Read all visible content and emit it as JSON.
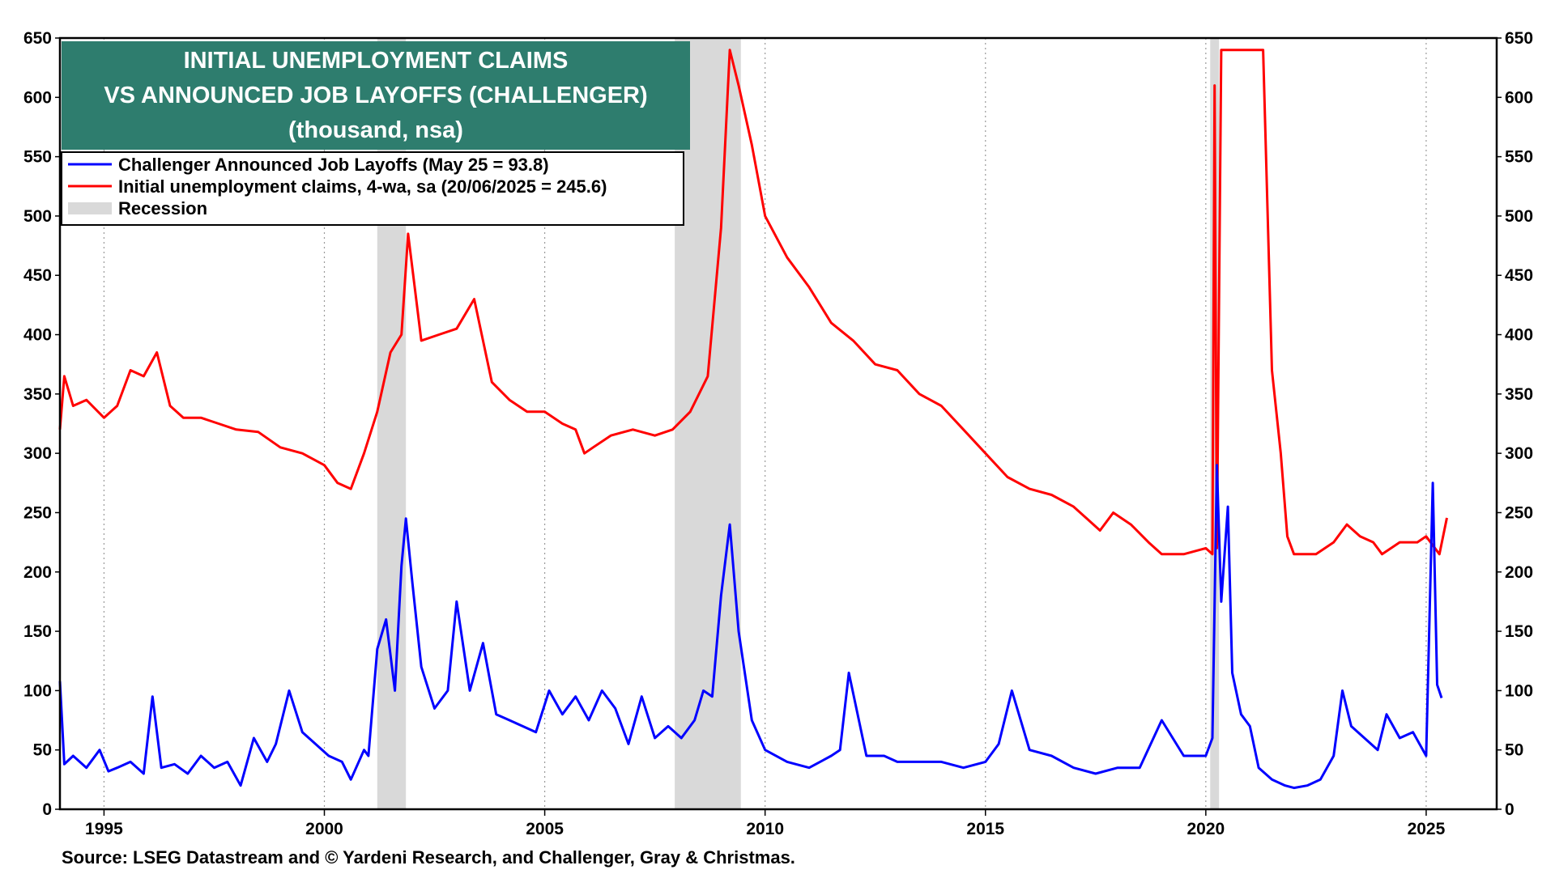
{
  "chart_data": {
    "type": "line",
    "title": [
      "INITIAL UNEMPLOYMENT CLAIMS",
      "VS ANNOUNCED JOB LAYOFFS (CHALLENGER)",
      "(thousand, nsa)"
    ],
    "source": "Source: LSEG Datastream and © Yardeni Research, and Challenger, Gray & Christmas.",
    "xlim": [
      1994.0,
      2026.6
    ],
    "ylim": [
      0,
      650
    ],
    "x_ticks": [
      1995,
      2000,
      2005,
      2010,
      2015,
      2020,
      2025
    ],
    "y_ticks": [
      0,
      50,
      100,
      150,
      200,
      250,
      300,
      350,
      400,
      450,
      500,
      550,
      600,
      650
    ],
    "grid": "vertical dotted at year ticks",
    "legend_placement": "top-left",
    "title_box_color": "#2E7D6E",
    "recessions": [
      {
        "start": 2001.2,
        "end": 2001.85
      },
      {
        "start": 2007.95,
        "end": 2009.45
      },
      {
        "start": 2020.1,
        "end": 2020.3
      }
    ],
    "legend": [
      {
        "label": "Challenger Announced Job Layoffs (May 25 = 93.8)",
        "color": "#0000FF",
        "kind": "line"
      },
      {
        "label": "Initial unemployment claims, 4-wa, sa (20/06/2025 = 245.6)",
        "color": "#FF0000",
        "kind": "line"
      },
      {
        "label": "Recession",
        "color": "#D9D9D9",
        "kind": "box"
      }
    ],
    "series": [
      {
        "name": "Initial unemployment claims, 4-wa, sa (20/06/2025 = 245.6)",
        "color": "#FF0000",
        "x": [
          1994.0,
          1994.1,
          1994.3,
          1994.6,
          1995.0,
          1995.3,
          1995.6,
          1995.9,
          1996.2,
          1996.5,
          1996.8,
          1997.2,
          1997.6,
          1998.0,
          1998.5,
          1999.0,
          1999.5,
          2000.0,
          2000.3,
          2000.6,
          2000.9,
          2001.2,
          2001.5,
          2001.75,
          2001.9,
          2002.2,
          2002.6,
          2003.0,
          2003.4,
          2003.8,
          2004.2,
          2004.6,
          2005.0,
          2005.4,
          2005.7,
          2005.9,
          2006.1,
          2006.5,
          2007.0,
          2007.5,
          2007.9,
          2008.3,
          2008.7,
          2009.0,
          2009.2,
          2009.4,
          2009.7,
          2010.0,
          2010.5,
          2011.0,
          2011.5,
          2012.0,
          2012.5,
          2013.0,
          2013.5,
          2014.0,
          2014.5,
          2015.0,
          2015.5,
          2016.0,
          2016.5,
          2017.0,
          2017.3,
          2017.6,
          2017.9,
          2018.3,
          2018.7,
          2019.0,
          2019.5,
          2020.0,
          2020.15,
          2020.2,
          2020.25,
          2020.35,
          2021.3,
          2021.5,
          2021.7,
          2021.85,
          2022.0,
          2022.5,
          2022.9,
          2023.2,
          2023.5,
          2023.8,
          2024.0,
          2024.4,
          2024.8,
          2025.0,
          2025.3,
          2025.47
        ],
        "values": [
          320,
          365,
          340,
          345,
          330,
          340,
          370,
          365,
          385,
          340,
          330,
          330,
          325,
          320,
          318,
          305,
          300,
          290,
          275,
          270,
          300,
          335,
          385,
          400,
          485,
          395,
          400,
          405,
          430,
          360,
          345,
          335,
          335,
          325,
          320,
          300,
          305,
          315,
          320,
          315,
          320,
          335,
          365,
          490,
          640,
          610,
          560,
          500,
          465,
          440,
          410,
          395,
          375,
          370,
          350,
          340,
          320,
          300,
          280,
          270,
          265,
          255,
          245,
          235,
          250,
          240,
          225,
          215,
          215,
          220,
          215,
          610,
          220,
          640,
          640,
          370,
          300,
          230,
          215,
          215,
          225,
          240,
          230,
          225,
          215,
          225,
          225,
          230,
          215,
          245.6
        ]
      },
      {
        "name": "Challenger Announced Job Layoffs (May 25 = 93.8)",
        "color": "#0000FF",
        "x": [
          1994.0,
          1994.1,
          1994.3,
          1994.6,
          1994.9,
          1995.1,
          1995.3,
          1995.6,
          1995.9,
          1996.1,
          1996.3,
          1996.6,
          1996.9,
          1997.2,
          1997.5,
          1997.8,
          1998.1,
          1998.4,
          1998.7,
          1998.9,
          1999.2,
          1999.5,
          1999.8,
          2000.1,
          2000.4,
          2000.6,
          2000.9,
          2001.0,
          2001.2,
          2001.4,
          2001.6,
          2001.75,
          2001.85,
          2002.0,
          2002.2,
          2002.5,
          2002.8,
          2003.0,
          2003.3,
          2003.6,
          2003.9,
          2004.2,
          2004.5,
          2004.8,
          2005.1,
          2005.4,
          2005.7,
          2006.0,
          2006.3,
          2006.6,
          2006.9,
          2007.2,
          2007.5,
          2007.8,
          2008.1,
          2008.4,
          2008.6,
          2008.8,
          2009.0,
          2009.2,
          2009.4,
          2009.7,
          2010.0,
          2010.5,
          2011.0,
          2011.5,
          2011.7,
          2011.9,
          2012.3,
          2012.7,
          2013.0,
          2013.5,
          2014.0,
          2014.5,
          2015.0,
          2015.3,
          2015.6,
          2016.0,
          2016.5,
          2017.0,
          2017.5,
          2018.0,
          2018.5,
          2019.0,
          2019.5,
          2020.0,
          2020.15,
          2020.25,
          2020.35,
          2020.5,
          2020.6,
          2020.8,
          2021.0,
          2021.2,
          2021.5,
          2021.8,
          2022.0,
          2022.3,
          2022.6,
          2022.9,
          2023.1,
          2023.3,
          2023.6,
          2023.9,
          2024.1,
          2024.4,
          2024.7,
          2025.0,
          2025.15,
          2025.25,
          2025.35
        ],
        "values": [
          108,
          38,
          45,
          35,
          50,
          32,
          35,
          40,
          30,
          95,
          35,
          38,
          30,
          45,
          35,
          40,
          20,
          60,
          40,
          55,
          100,
          65,
          55,
          45,
          40,
          25,
          50,
          45,
          135,
          160,
          100,
          205,
          245,
          190,
          120,
          85,
          100,
          175,
          100,
          140,
          80,
          75,
          70,
          65,
          100,
          80,
          95,
          75,
          100,
          85,
          55,
          95,
          60,
          70,
          60,
          75,
          100,
          95,
          180,
          240,
          150,
          75,
          50,
          40,
          35,
          45,
          50,
          115,
          45,
          45,
          40,
          40,
          40,
          35,
          40,
          55,
          100,
          50,
          45,
          35,
          30,
          35,
          35,
          75,
          45,
          45,
          60,
          290,
          175,
          255,
          115,
          80,
          70,
          35,
          25,
          20,
          18,
          20,
          25,
          45,
          100,
          70,
          60,
          50,
          80,
          60,
          65,
          45,
          275,
          105,
          93.8
        ]
      }
    ]
  }
}
